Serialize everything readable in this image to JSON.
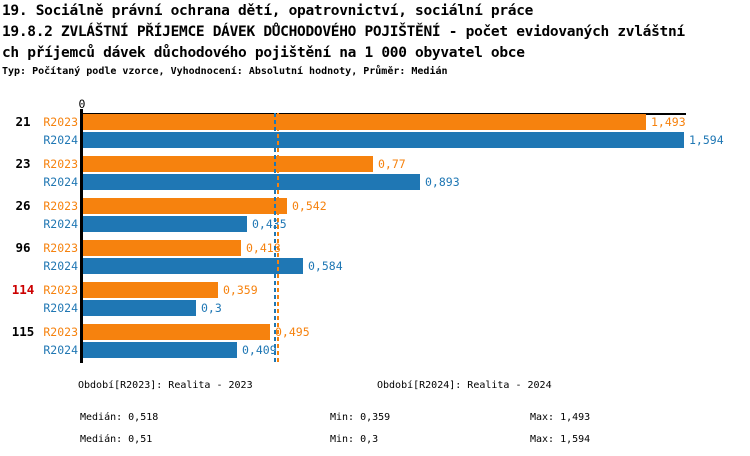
{
  "header": {
    "line1": "19. Sociálně právní ochrana dětí, opatrovnictví, sociální práce",
    "line2": "19.8.2 ZVLÁŠTNÍ PŘÍJEMCE DÁVEK DŮCHODOVÉHO POJIŠTĚNÍ - počet evidovaných zvláštní",
    "line3": "ch příjemců dávek důchodového pojištění na 1 000 obyvatel obce",
    "line4": "Typ: Počítaný podle vzorce, Vyhodnocení: Absolutní hodnoty, Průměr: Medián"
  },
  "chart_data": {
    "type": "bar",
    "orientation": "horizontal",
    "title": "19.8.2 Zvláštní příjemce dávek důchodového pojištění na 1 000 obyvatel obce",
    "categories": [
      "21",
      "23",
      "26",
      "96",
      "114",
      "115"
    ],
    "highlighted_category": "114",
    "x_origin_label": "0",
    "xlim": [
      0,
      1.602
    ],
    "grid": false,
    "series": [
      {
        "name": "R2023",
        "legend": "Období[R2023]: Realita - 2023",
        "color": "#F6820E",
        "values": [
          1.493,
          0.77,
          0.542,
          0.418,
          0.359,
          0.495
        ],
        "value_labels": [
          "1,493",
          "0,77",
          "0,542",
          "0,418",
          "0,359",
          "0,495"
        ],
        "median": 0.518,
        "median_label": "Medián: 0,518",
        "min_label": "Min: 0,359",
        "max_label": "Max: 1,493"
      },
      {
        "name": "R2024",
        "legend": "Období[R2024]: Realita - 2024",
        "color": "#1F77B4",
        "values": [
          1.594,
          0.893,
          0.435,
          0.584,
          0.3,
          0.409
        ],
        "value_labels": [
          "1,594",
          "0,893",
          "0,435",
          "0,584",
          "0,3",
          "0,409"
        ],
        "median": 0.51,
        "median_label": "Medián: 0,51",
        "min_label": "Min: 0,3",
        "max_label": "Max: 1,594"
      }
    ]
  },
  "colors": {
    "orange": "#F6820E",
    "blue": "#1F77B4",
    "highlight_red": "#CC0000",
    "axis_black": "#000000",
    "background": "#FFFFFF"
  }
}
